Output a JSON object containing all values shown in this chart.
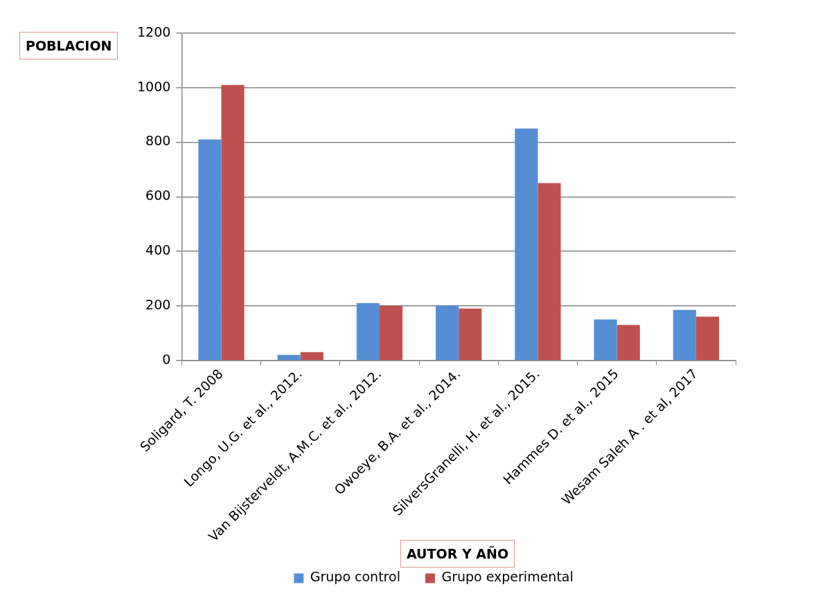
{
  "chart_data": {
    "type": "bar",
    "xlabel": "AUTOR Y AÑO",
    "ylabel": "POBLACION",
    "categories": [
      "Soligard, T. 2008",
      "Longo, U.G. et al., 2012.",
      "Van Bijsterveldt, A.M.C. et al., 2012.",
      "Owoeye, B.A. et al., 2014.",
      "SilversGranelli, H. et al., 2015.",
      "Hammes D. et al., 2015",
      "Wesam Saleh A . et al, 2017"
    ],
    "series": [
      {
        "name": "Grupo control",
        "color": "#558ed5",
        "values": [
          810,
          20,
          210,
          200,
          850,
          150,
          185
        ]
      },
      {
        "name": "Grupo experimental",
        "color": "#c0504d",
        "values": [
          1010,
          30,
          200,
          190,
          650,
          130,
          160
        ]
      }
    ],
    "ylim": [
      0,
      1200
    ],
    "yticks": [
      0,
      200,
      400,
      600,
      800,
      1000,
      1200
    ],
    "grid": "y",
    "legend": "bottom"
  }
}
